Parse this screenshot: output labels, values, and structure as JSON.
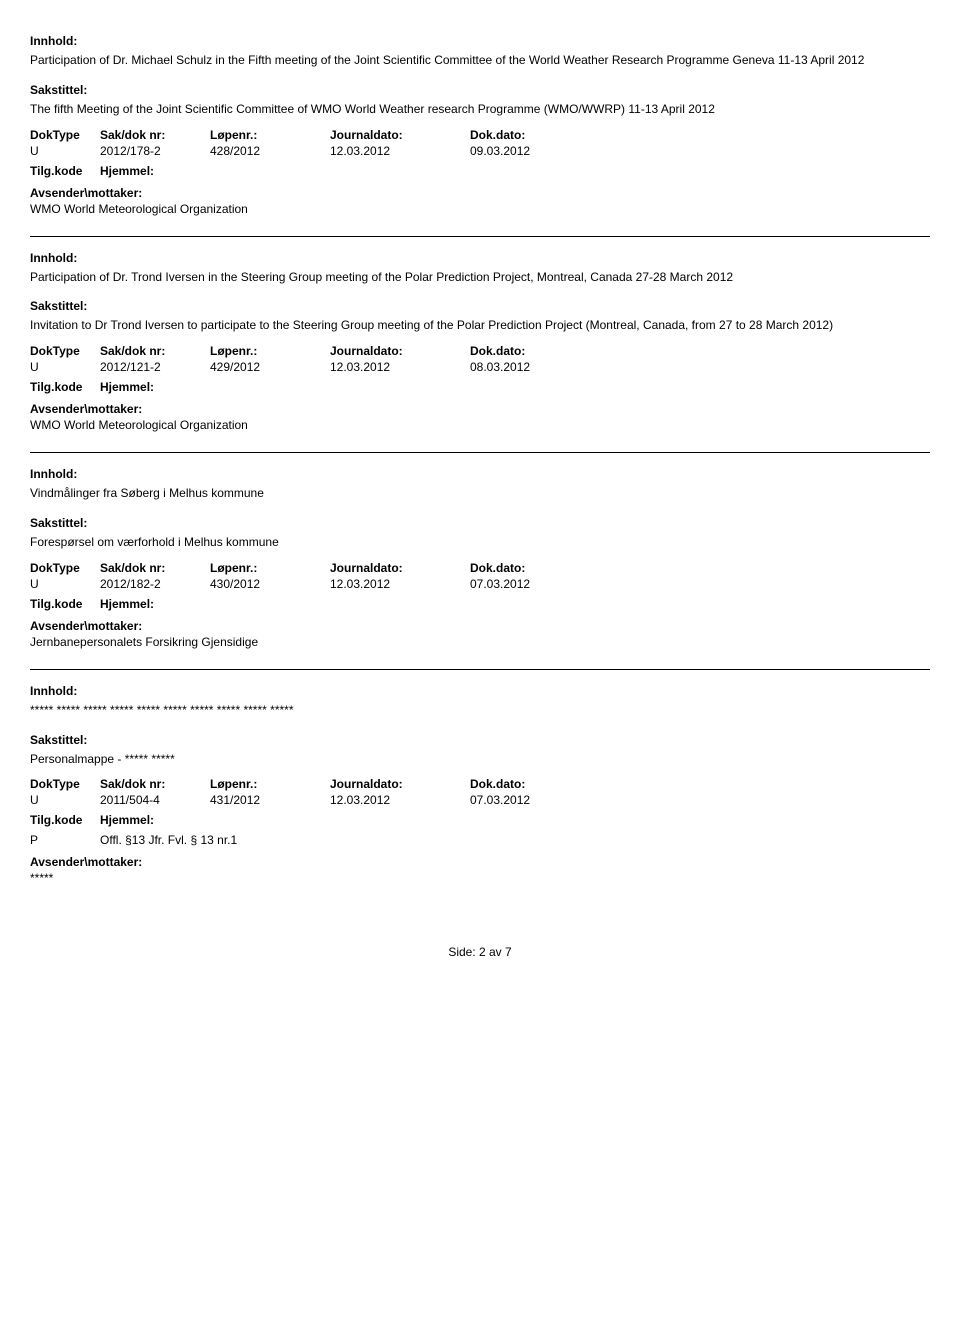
{
  "labels": {
    "innhold": "Innhold:",
    "sakstittel": "Sakstittel:",
    "doktype": "DokType",
    "sakdok": "Sak/dok nr:",
    "lopenr": "Løpenr.:",
    "journaldato": "Journaldato:",
    "dokdato": "Dok.dato:",
    "tilgkode": "Tilg.kode",
    "hjemmel": "Hjemmel:",
    "avsender": "Avsender\\mottaker:"
  },
  "entries": [
    {
      "innhold": "Participation of Dr. Michael Schulz in the Fifth meeting of the Joint Scientific Committee of the World Weather Research Programme Geneva 11-13 April 2012",
      "sakstittel": "The fifth Meeting of the Joint Scientific Committee of WMO World Weather research Programme (WMO/WWRP) 11-13 April 2012",
      "doktype": "U",
      "sakdok": "2012/178-2",
      "lopenr": "428/2012",
      "jdato": "12.03.2012",
      "ddato": "09.03.2012",
      "tilg_code": "",
      "hjemmel": "",
      "avsender": "WMO World Meteorological Organization"
    },
    {
      "innhold": "Participation of Dr. Trond Iversen in the Steering Group meeting of the Polar Prediction Project, Montreal, Canada 27-28 March 2012",
      "sakstittel": "Invitation to Dr Trond Iversen to participate to the Steering Group meeting of the Polar Prediction Project (Montreal, Canada, from 27 to 28 March 2012)",
      "doktype": "U",
      "sakdok": "2012/121-2",
      "lopenr": "429/2012",
      "jdato": "12.03.2012",
      "ddato": "08.03.2012",
      "tilg_code": "",
      "hjemmel": "",
      "avsender": "WMO World Meteorological Organization"
    },
    {
      "innhold": "Vindmålinger fra Søberg i Melhus kommune",
      "sakstittel": "Forespørsel om værforhold i Melhus kommune",
      "doktype": "U",
      "sakdok": "2012/182-2",
      "lopenr": "430/2012",
      "jdato": "12.03.2012",
      "ddato": "07.03.2012",
      "tilg_code": "",
      "hjemmel": "",
      "avsender": "Jernbanepersonalets Forsikring Gjensidige"
    },
    {
      "innhold": "***** ***** ***** ***** ***** ***** ***** ***** ***** *****",
      "sakstittel": "Personalmappe - ***** *****",
      "doktype": "U",
      "sakdok": "2011/504-4",
      "lopenr": "431/2012",
      "jdato": "12.03.2012",
      "ddato": "07.03.2012",
      "tilg_code": "P",
      "hjemmel": "Offl. §13 Jfr. Fvl. § 13 nr.1",
      "avsender": "*****"
    }
  ],
  "footer": "Side: 2 av 7"
}
